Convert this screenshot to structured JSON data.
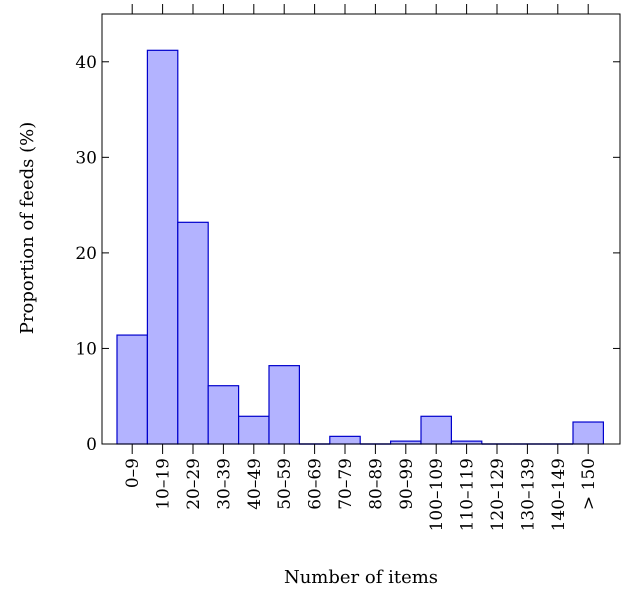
{
  "chart_data": {
    "type": "bar",
    "title": "",
    "xlabel": "Number of items",
    "ylabel": "Proportion of feeds (%)",
    "categories": [
      "0–9",
      "10–19",
      "20–29",
      "30–39",
      "40–49",
      "50–59",
      "60–69",
      "70–79",
      "80–89",
      "90–99",
      "100–109",
      "110–119",
      "120–129",
      "130–139",
      "140–149",
      "> 150"
    ],
    "values": [
      11.4,
      41.2,
      23.2,
      6.1,
      2.9,
      8.2,
      0,
      0.8,
      0,
      0.3,
      2.9,
      0.3,
      0,
      0,
      0,
      2.3
    ],
    "ylim": [
      0,
      45
    ],
    "yticks": [
      0,
      10,
      20,
      30,
      40
    ],
    "grid": false,
    "colors": {
      "bar_fill": "#b3b3ff",
      "bar_stroke": "#0000cc"
    }
  }
}
